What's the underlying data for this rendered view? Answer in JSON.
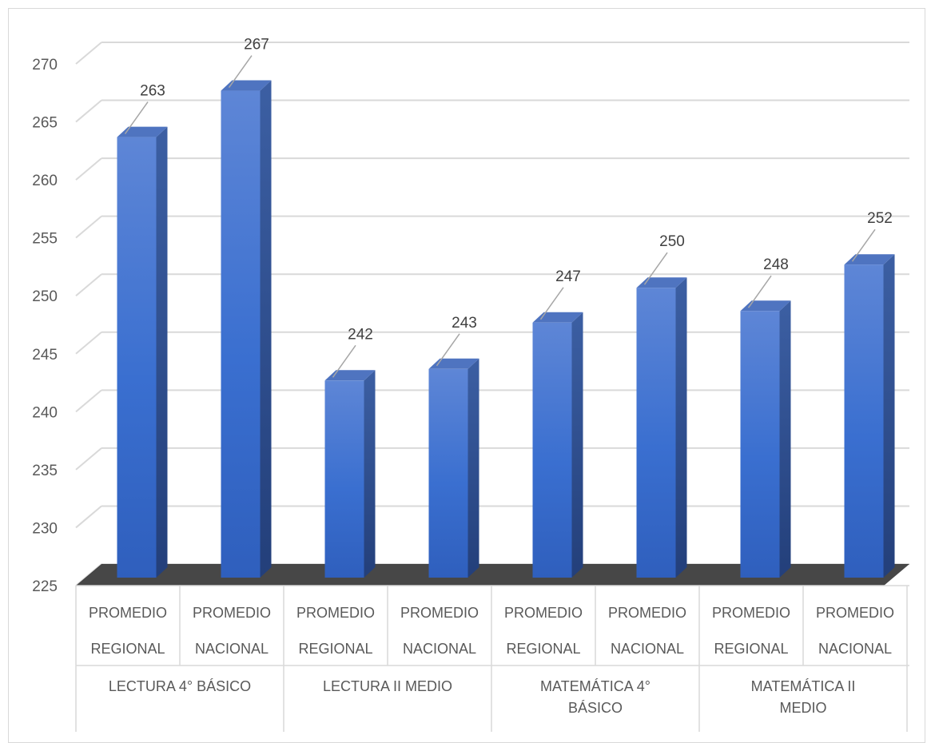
{
  "chart_data": {
    "type": "bar",
    "style": "3d-column",
    "title": "",
    "xlabel": "",
    "ylabel": "",
    "ylim": [
      225,
      270
    ],
    "y_ticks": [
      225,
      230,
      235,
      240,
      245,
      250,
      255,
      260,
      265,
      270
    ],
    "grid": true,
    "legend": "none",
    "categories": [
      {
        "line1": "PROMEDIO",
        "line2": "REGIONAL",
        "group": "LECTURA 4° BÁSICO"
      },
      {
        "line1": "PROMEDIO",
        "line2": "NACIONAL",
        "group": "LECTURA 4° BÁSICO"
      },
      {
        "line1": "PROMEDIO",
        "line2": "REGIONAL",
        "group": "LECTURA II MEDIO"
      },
      {
        "line1": "PROMEDIO",
        "line2": "NACIONAL",
        "group": "LECTURA II MEDIO"
      },
      {
        "line1": "PROMEDIO",
        "line2": "REGIONAL",
        "group": "MATEMÁTICA 4° BÁSICO"
      },
      {
        "line1": "PROMEDIO",
        "line2": "NACIONAL",
        "group": "MATEMÁTICA 4° BÁSICO"
      },
      {
        "line1": "PROMEDIO",
        "line2": "REGIONAL",
        "group": "MATEMÁTICA II MEDIO"
      },
      {
        "line1": "PROMEDIO",
        "line2": "NACIONAL",
        "group": "MATEMÁTICA II MEDIO"
      }
    ],
    "groups": [
      {
        "lines": [
          "LECTURA 4° BÁSICO"
        ]
      },
      {
        "lines": [
          "LECTURA II MEDIO"
        ]
      },
      {
        "lines": [
          "MATEMÁTICA 4°",
          "BÁSICO"
        ]
      },
      {
        "lines": [
          "MATEMÁTICA II",
          "MEDIO"
        ]
      }
    ],
    "values": [
      263,
      267,
      242,
      243,
      247,
      250,
      248,
      252
    ],
    "colors": {
      "bar_front": "#3a6fd0",
      "bar_side": "#2a4f94",
      "bar_top": "#4f74c0",
      "grid": "#d9d9d9",
      "floor_shadow": "#1f1f1f"
    }
  }
}
